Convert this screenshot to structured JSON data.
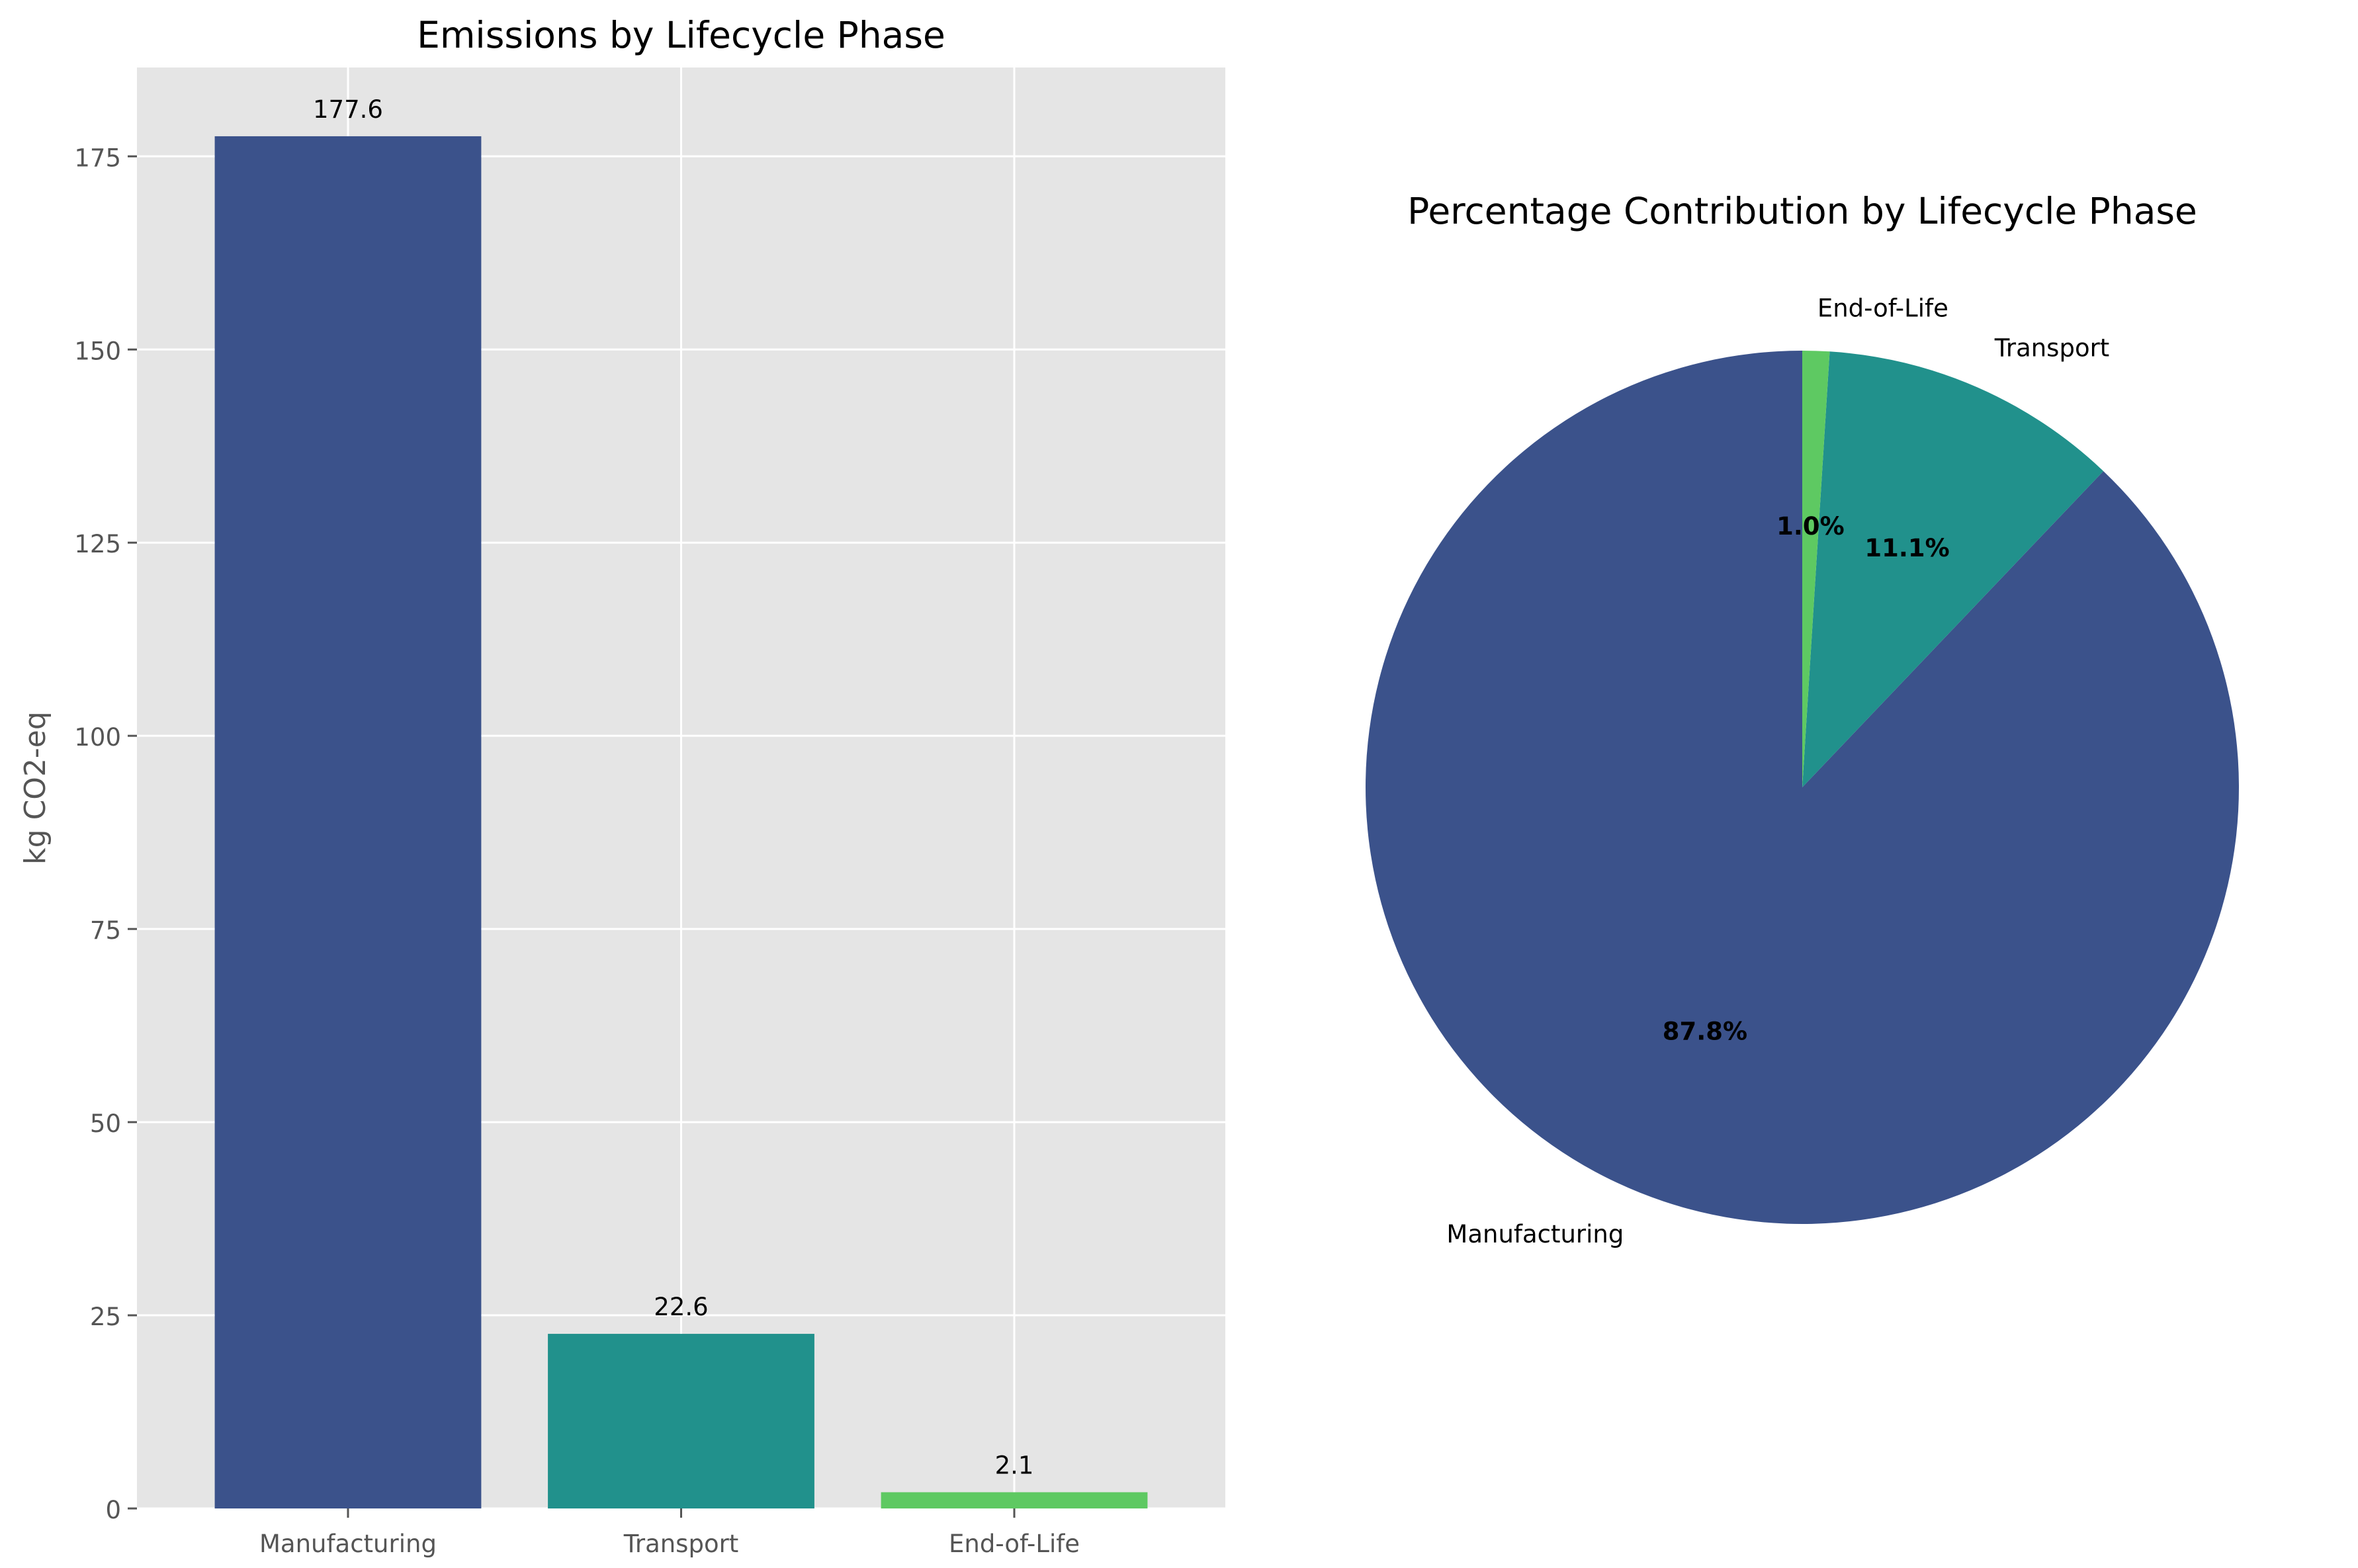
{
  "chart_data": [
    {
      "type": "bar",
      "title": "Emissions by Lifecycle Phase",
      "xlabel": "",
      "ylabel": "kg CO2-eq",
      "categories": [
        "Manufacturing",
        "Transport",
        "End-of-Life"
      ],
      "values": [
        177.6,
        22.6,
        2.1
      ],
      "value_labels": [
        "177.6",
        "22.6",
        "2.1"
      ],
      "colors": [
        "#3b528b",
        "#21918c",
        "#5ec962"
      ],
      "ylim": [
        0,
        186.5
      ],
      "yticks": [
        0,
        25,
        50,
        75,
        100,
        125,
        150,
        175
      ],
      "ytick_labels": [
        "0",
        "25",
        "50",
        "75",
        "100",
        "125",
        "150",
        "175"
      ],
      "grid": true,
      "background": "#e5e5e5"
    },
    {
      "type": "pie",
      "title": "Percentage Contribution by Lifecycle Phase",
      "labels": [
        "Manufacturing",
        "Transport",
        "End-of-Life"
      ],
      "values": [
        87.8,
        11.1,
        1.0
      ],
      "pct_labels": [
        "87.8%",
        "11.1%",
        "1.0%"
      ],
      "colors": [
        "#3b528b",
        "#21918c",
        "#5ec962"
      ],
      "start_angle": 90,
      "direction": "clockwise"
    }
  ]
}
